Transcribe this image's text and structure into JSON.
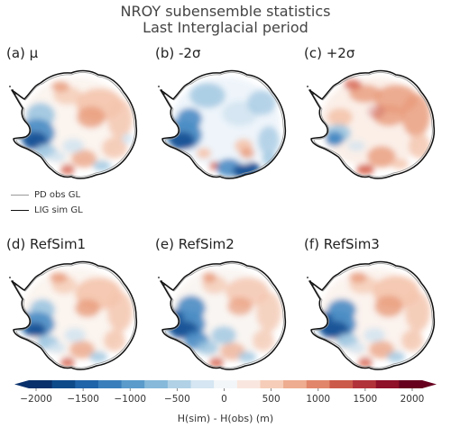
{
  "figure": {
    "title_line1": "NROY subensemble statistics",
    "title_line2": "Last Interglacial period"
  },
  "panels": [
    {
      "label": "(a) μ",
      "pattern": "mean"
    },
    {
      "label": "(b) -2σ",
      "pattern": "minus"
    },
    {
      "label": "(c) +2σ",
      "pattern": "plus"
    },
    {
      "label": "(d) RefSim1",
      "pattern": "ref1"
    },
    {
      "label": "(e) RefSim2",
      "pattern": "ref2"
    },
    {
      "label": "(f) RefSim3",
      "pattern": "ref3"
    }
  ],
  "legend": {
    "items": [
      {
        "label": "PD obs GL",
        "color": "#999999"
      },
      {
        "label": "LIG sim GL",
        "color": "#111111"
      }
    ]
  },
  "colorbar": {
    "label": "H(sim) - H(obs) (m)",
    "min": -2000,
    "max": 2000,
    "ticks": [
      "−2000",
      "−1500",
      "−1000",
      "−500",
      "0",
      "500",
      "1000",
      "1500",
      "2000"
    ],
    "colors": [
      "#08306b",
      "#0d4a8a",
      "#1f63a8",
      "#3a7fbb",
      "#5a9bcb",
      "#86b9da",
      "#b0d1e6",
      "#d6e6f2",
      "#f3f6f8",
      "#f9e7df",
      "#f6cdb9",
      "#eeac90",
      "#e1866a",
      "#cc5a4a",
      "#b2323a",
      "#8e1029",
      "#67001f"
    ]
  }
}
